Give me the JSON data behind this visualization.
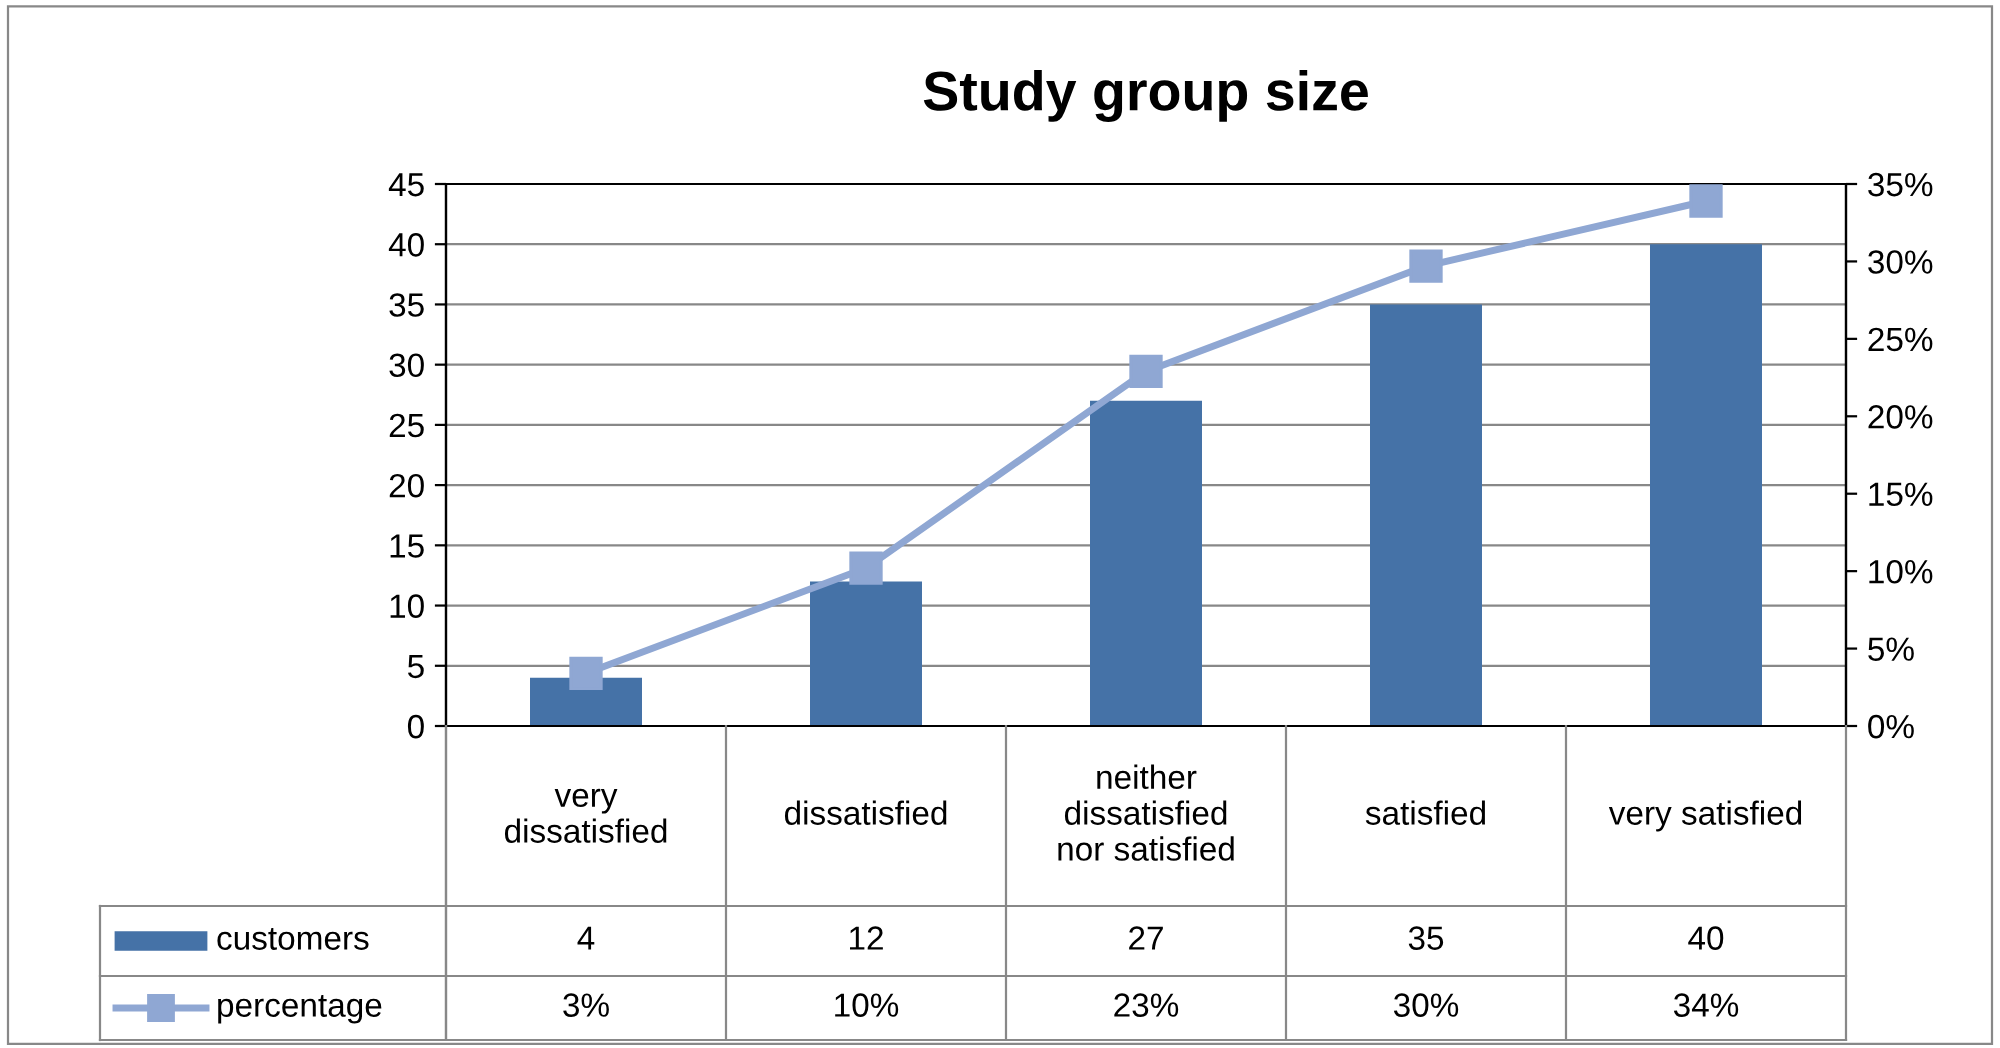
{
  "chart_data": {
    "type": "bar",
    "title": "Study group size",
    "categories": [
      "very\ndissatisfied",
      "dissatisfied",
      "neither\ndissatisfied\nnor satisfied",
      "satisfied",
      "very satisfied"
    ],
    "series": [
      {
        "name": "customers",
        "color": "#4572a7",
        "values": [
          4,
          12,
          27,
          35,
          40
        ],
        "value_labels": [
          "4",
          "12",
          "27",
          "35",
          "40"
        ]
      },
      {
        "name": "percentage",
        "type": "line",
        "axis": "y2",
        "color": "#8fa7d3",
        "marker": "square",
        "values": [
          3.4,
          10.2,
          22.9,
          29.7,
          33.9
        ],
        "value_labels": [
          "3%",
          "10%",
          "23%",
          "30%",
          "34%"
        ]
      }
    ],
    "ylim": [
      0,
      45
    ],
    "yticks": [
      0,
      5,
      10,
      15,
      20,
      25,
      30,
      35,
      40,
      45
    ],
    "y2lim": [
      0,
      35
    ],
    "y2ticks": [
      {
        "value": 0,
        "label": "0%"
      },
      {
        "value": 5,
        "label": "5%"
      },
      {
        "value": 10,
        "label": "10%"
      },
      {
        "value": 15,
        "label": "15%"
      },
      {
        "value": 20,
        "label": "20%"
      },
      {
        "value": 25,
        "label": "25%"
      },
      {
        "value": 30,
        "label": "30%"
      },
      {
        "value": 35,
        "label": "35%"
      }
    ],
    "grid": "y",
    "legend": "bottom left"
  }
}
